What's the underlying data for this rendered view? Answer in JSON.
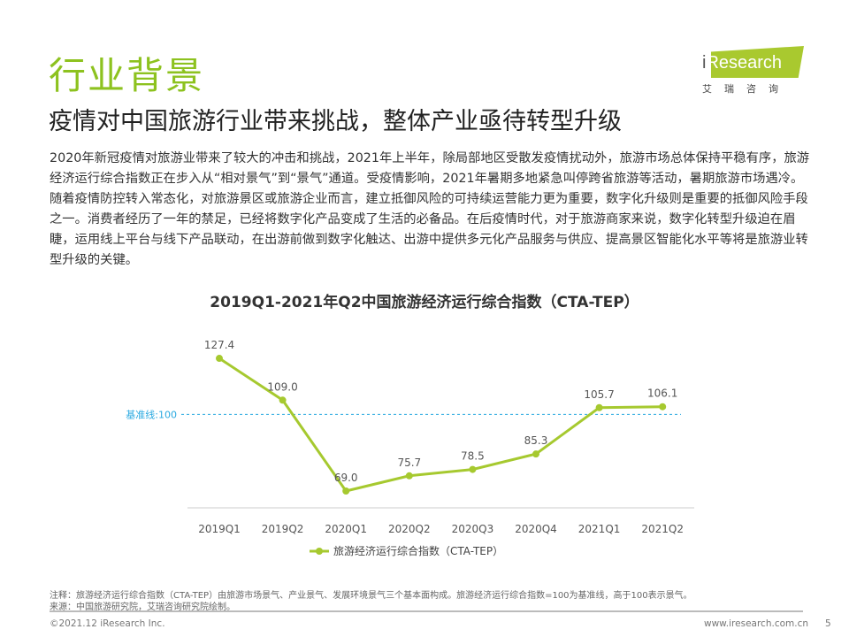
{
  "header": {
    "title": "行业背景",
    "subtitle": "疫情对中国旅游行业带来挑战，整体产业亟待转型升级"
  },
  "logo": {
    "text_i": "i",
    "text_rest": "Research",
    "cn": "艾瑞咨询"
  },
  "paragraph": "2020年新冠疫情对旅游业带来了较大的冲击和挑战，2021年上半年，除局部地区受散发疫情扰动外，旅游市场总体保持平稳有序，旅游经济运行综合指数正在步入从“相对景气”到“景气”通道。受疫情影响，2021年暑期多地紧急叫停跨省旅游等活动，暑期旅游市场遇冷。随着疫情防控转入常态化，对旅游景区或旅游企业而言，建立抵御风险的可持续运营能力更为重要，数字化升级则是重要的抵御风险手段之一。消费者经历了一年的禁足，已经将数字化产品变成了生活的必备品。在后疫情时代，对于旅游商家来说，数字化转型升级迫在眉睫，运用线上平台与线下产品联动，在出游前做到数字化触达、出游中提供多元化产品服务与供应、提高景区智能化水平等将是旅游业转型升级的关键。",
  "chart_data": {
    "type": "line",
    "title": "2019Q1-2021年Q2中国旅游经济运行综合指数（CTA-TEP）",
    "categories": [
      "2019Q1",
      "2019Q2",
      "2020Q1",
      "2020Q2",
      "2020Q3",
      "2020Q4",
      "2021Q1",
      "2021Q2"
    ],
    "series": [
      {
        "name": "旅游经济运行综合指数（CTA-TEP）",
        "values": [
          127.4,
          109.0,
          69.0,
          75.7,
          78.5,
          85.3,
          105.7,
          106.1
        ]
      }
    ],
    "labels": [
      "127.4",
      "109.0",
      "69.0",
      "75.7",
      "78.5",
      "85.3",
      "105.7",
      "106.1"
    ],
    "baseline": {
      "value": 100,
      "label": "基准线:100"
    },
    "colors": {
      "line": "#a6c92f",
      "baseline": "#2aa9e0"
    },
    "legend": "bottom"
  },
  "notes": {
    "note": "注释：旅游经济运行综合指数（CTA-TEP）由旅游市场景气、产业景气、发展环境景气三个基本面构成。旅游经济运行综合指数=100为基准线，高于100表示景气。",
    "source": "来源：中国旅游研究院，艾瑞咨询研究院绘制。"
  },
  "footer": {
    "copyright": "©2021.12 iResearch Inc.",
    "url": "www.iresearch.com.cn",
    "page": "5"
  }
}
